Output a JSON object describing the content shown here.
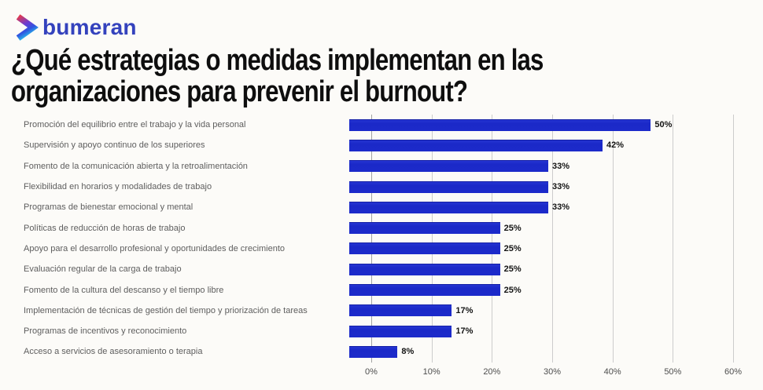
{
  "logo": {
    "text": "bumeran",
    "color": "#3442bd",
    "icon": "bumeran-chevron-icon"
  },
  "title": {
    "line1": "¿Qué estrategias o medidas implementan en las",
    "line2": "organizaciones para prevenir el burnout?"
  },
  "chart_data": {
    "type": "bar",
    "orientation": "horizontal",
    "title": "¿Qué estrategias o medidas implementan en las organizaciones para prevenir el burnout?",
    "categories": [
      "Promoción del equilibrio entre el trabajo y la vida personal",
      "Supervisión y apoyo continuo de los superiores",
      "Fomento de la comunicación abierta y la retroalimentación",
      "Flexibilidad en horarios y modalidades de trabajo",
      "Programas de bienestar emocional y mental",
      "Políticas de reducción de horas de trabajo",
      "Apoyo para el desarrollo profesional y oportunidades de crecimiento",
      "Evaluación regular de la carga de trabajo",
      "Fomento de la cultura del descanso y el tiempo libre",
      "Implementación de técnicas de gestión del tiempo y priorización de tareas",
      "Programas de incentivos y reconocimiento",
      "Acceso a servicios de asesoramiento o terapia"
    ],
    "values": [
      50,
      42,
      33,
      33,
      33,
      25,
      25,
      25,
      25,
      17,
      17,
      8
    ],
    "value_labels": [
      "50%",
      "42%",
      "33%",
      "33%",
      "33%",
      "25%",
      "25%",
      "25%",
      "25%",
      "17%",
      "17%",
      "8%"
    ],
    "x_ticks": [
      "0%",
      "10%",
      "20%",
      "30%",
      "40%",
      "50%",
      "60%"
    ],
    "xlim": [
      0,
      60
    ],
    "grid": true,
    "legend": false,
    "bar_color": "#1c2aca",
    "gridline_color": "#cccccc",
    "label_color": "#5e5e5e",
    "value_label_position": "right-of-bar"
  }
}
